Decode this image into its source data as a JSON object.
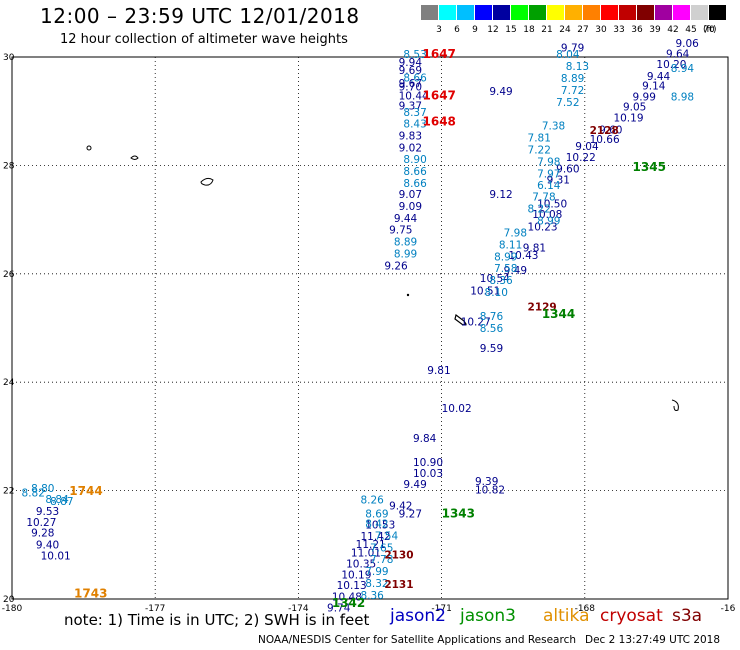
{
  "header": {
    "title": "12:00 – 23:59 UTC 12/01/2018",
    "subtitle": "12 hour collection of altimeter wave heights"
  },
  "legend": {
    "colors": [
      "#808080",
      "#00ffff",
      "#00bfff",
      "#0000ff",
      "#0000a0",
      "#00ff00",
      "#00a000",
      "#ffff00",
      "#ffb000",
      "#ff8000",
      "#ff0000",
      "#c00000",
      "#800000",
      "#a000a0",
      "#ff00ff",
      "#d0d0d0",
      "#000000"
    ],
    "labels": [
      "3",
      "6",
      "9",
      "12",
      "15",
      "18",
      "21",
      "24",
      "27",
      "30",
      "33",
      "36",
      "39",
      "42",
      "45",
      "70"
    ],
    "unit": "(ft)"
  },
  "axes": {
    "x_ticks": [
      "-180",
      "-177",
      "-174",
      "-171",
      "-168",
      "-16"
    ],
    "y_ticks": [
      "30",
      "28",
      "26",
      "24",
      "22",
      "20"
    ]
  },
  "chart_data": {
    "type": "scatter",
    "x_range": [
      -180,
      -165
    ],
    "y_range": [
      20,
      30
    ],
    "grid": true,
    "series": [
      {
        "name": "jason2",
        "color": "#00008b",
        "points": [
          {
            "x": -171.9,
            "y": 29.83,
            "v": "9.94"
          },
          {
            "x": -171.9,
            "y": 29.69,
            "v": "9.69"
          },
          {
            "x": -171.9,
            "y": 29.45,
            "v": "9.67"
          },
          {
            "x": -171.9,
            "y": 29.38,
            "v": "9.70"
          },
          {
            "x": -171.9,
            "y": 29.22,
            "v": "10.44"
          },
          {
            "x": -171.9,
            "y": 29.03,
            "v": "9.37"
          },
          {
            "x": -171.9,
            "y": 28.48,
            "v": "9.83"
          },
          {
            "x": -171.9,
            "y": 28.26,
            "v": "9.02"
          },
          {
            "x": -171.9,
            "y": 27.4,
            "v": "9.07"
          },
          {
            "x": -171.9,
            "y": 27.18,
            "v": "9.09"
          },
          {
            "x": -172.0,
            "y": 26.96,
            "v": "9.44"
          },
          {
            "x": -172.1,
            "y": 26.74,
            "v": "9.75"
          },
          {
            "x": -172.2,
            "y": 26.08,
            "v": "9.26"
          },
          {
            "x": -172.6,
            "y": 21.3,
            "v": "10.53"
          },
          {
            "x": -172.7,
            "y": 21.09,
            "v": "11.42"
          },
          {
            "x": -172.8,
            "y": 20.94,
            "v": "11.21"
          },
          {
            "x": -172.9,
            "y": 20.78,
            "v": "11.01"
          },
          {
            "x": -173.0,
            "y": 20.58,
            "v": "10.35"
          },
          {
            "x": -173.1,
            "y": 20.38,
            "v": "10.19"
          },
          {
            "x": -173.2,
            "y": 20.18,
            "v": "10.13"
          },
          {
            "x": -173.3,
            "y": 19.97,
            "v": "10.48"
          },
          {
            "x": -173.4,
            "y": 19.77,
            "v": "9.74"
          },
          {
            "x": -172.1,
            "y": 21.65,
            "v": "9.42"
          },
          {
            "x": -171.9,
            "y": 21.5,
            "v": "9.27"
          },
          {
            "x": -171.8,
            "y": 22.05,
            "v": "9.49"
          },
          {
            "x": -171.6,
            "y": 22.25,
            "v": "10.03"
          },
          {
            "x": -171.6,
            "y": 22.45,
            "v": "10.90"
          },
          {
            "x": -171.6,
            "y": 22.9,
            "v": "9.84"
          },
          {
            "x": -171.0,
            "y": 23.45,
            "v": "10.02"
          },
          {
            "x": -171.3,
            "y": 24.15,
            "v": "9.81"
          },
          {
            "x": -170.2,
            "y": 24.56,
            "v": "9.59"
          },
          {
            "x": -170.6,
            "y": 25.05,
            "v": "10.27"
          },
          {
            "x": -170.4,
            "y": 25.62,
            "v": "10.51"
          },
          {
            "x": -170.2,
            "y": 25.85,
            "v": "10.54"
          },
          {
            "x": -169.7,
            "y": 26.0,
            "v": "9.49"
          },
          {
            "x": -169.6,
            "y": 26.27,
            "v": "10.43"
          },
          {
            "x": -169.3,
            "y": 26.41,
            "v": "9.81"
          },
          {
            "x": -169.2,
            "y": 26.8,
            "v": "10.23"
          },
          {
            "x": -169.1,
            "y": 27.03,
            "v": "10.08"
          },
          {
            "x": -169.0,
            "y": 27.22,
            "v": "10.50"
          },
          {
            "x": -170.0,
            "y": 27.4,
            "v": "9.12"
          },
          {
            "x": -168.8,
            "y": 27.67,
            "v": "9.31"
          },
          {
            "x": -168.6,
            "y": 27.87,
            "v": "9.60"
          },
          {
            "x": -168.4,
            "y": 28.08,
            "v": "10.22"
          },
          {
            "x": -168.2,
            "y": 28.28,
            "v": "9.04"
          },
          {
            "x": -167.9,
            "y": 28.41,
            "v": "10.66"
          },
          {
            "x": -167.7,
            "y": 28.59,
            "v": "9.60"
          },
          {
            "x": -167.4,
            "y": 28.81,
            "v": "10.19"
          },
          {
            "x": -167.2,
            "y": 29.01,
            "v": "9.05"
          },
          {
            "x": -170.0,
            "y": 29.3,
            "v": "9.49"
          },
          {
            "x": -167.0,
            "y": 29.2,
            "v": "9.99"
          },
          {
            "x": -166.8,
            "y": 29.4,
            "v": "9.14"
          },
          {
            "x": -166.7,
            "y": 29.58,
            "v": "9.44"
          },
          {
            "x": -166.5,
            "y": 29.8,
            "v": "10.20"
          },
          {
            "x": -166.3,
            "y": 29.99,
            "v": "9.64"
          },
          {
            "x": -166.1,
            "y": 30.18,
            "v": "9.06"
          },
          {
            "x": -168.5,
            "y": 30.1,
            "v": "9.79"
          },
          {
            "x": -179.5,
            "y": 21.55,
            "v": "9.53"
          },
          {
            "x": -179.7,
            "y": 21.35,
            "v": "10.27"
          },
          {
            "x": -179.6,
            "y": 21.15,
            "v": "9.28"
          },
          {
            "x": -179.5,
            "y": 20.93,
            "v": "9.40"
          },
          {
            "x": -179.4,
            "y": 20.73,
            "v": "10.01"
          },
          {
            "x": -170.3,
            "y": 22.1,
            "v": "9.39"
          },
          {
            "x": -170.3,
            "y": 21.95,
            "v": "10.82"
          }
        ]
      },
      {
        "name": "jason3",
        "color": "#0080c0",
        "points": [
          {
            "x": -171.8,
            "y": 29.98,
            "v": "8.53"
          },
          {
            "x": -171.8,
            "y": 29.55,
            "v": "8.66"
          },
          {
            "x": -171.8,
            "y": 28.91,
            "v": "8.37"
          },
          {
            "x": -171.8,
            "y": 28.7,
            "v": "8.43"
          },
          {
            "x": -171.8,
            "y": 28.04,
            "v": "8.90"
          },
          {
            "x": -171.8,
            "y": 27.82,
            "v": "8.66"
          },
          {
            "x": -171.8,
            "y": 27.6,
            "v": "8.66"
          },
          {
            "x": -172.0,
            "y": 26.52,
            "v": "8.89"
          },
          {
            "x": -172.0,
            "y": 26.3,
            "v": "8.99"
          },
          {
            "x": -168.6,
            "y": 29.98,
            "v": "8.04"
          },
          {
            "x": -168.4,
            "y": 29.76,
            "v": "8.13"
          },
          {
            "x": -168.5,
            "y": 29.54,
            "v": "8.89"
          },
          {
            "x": -168.5,
            "y": 29.32,
            "v": "7.72"
          },
          {
            "x": -168.6,
            "y": 29.1,
            "v": "7.52"
          },
          {
            "x": -168.9,
            "y": 28.66,
            "v": "7.38"
          },
          {
            "x": -169.2,
            "y": 28.44,
            "v": "7.81"
          },
          {
            "x": -169.2,
            "y": 28.22,
            "v": "7.22"
          },
          {
            "x": -169.0,
            "y": 28.0,
            "v": "7.98"
          },
          {
            "x": -169.0,
            "y": 27.78,
            "v": "7.97"
          },
          {
            "x": -169.0,
            "y": 27.56,
            "v": "6.14"
          },
          {
            "x": -169.1,
            "y": 27.35,
            "v": "7.78"
          },
          {
            "x": -169.2,
            "y": 27.13,
            "v": "8.22"
          },
          {
            "x": -169.0,
            "y": 26.91,
            "v": "8.99"
          },
          {
            "x": -169.7,
            "y": 26.69,
            "v": "7.98"
          },
          {
            "x": -169.8,
            "y": 26.47,
            "v": "8.11"
          },
          {
            "x": -169.9,
            "y": 26.25,
            "v": "8.99"
          },
          {
            "x": -169.9,
            "y": 26.03,
            "v": "7.58"
          },
          {
            "x": -170.0,
            "y": 25.81,
            "v": "8.36"
          },
          {
            "x": -170.1,
            "y": 25.59,
            "v": "8.10"
          },
          {
            "x": -170.2,
            "y": 25.15,
            "v": "8.76"
          },
          {
            "x": -170.2,
            "y": 24.93,
            "v": "8.56"
          },
          {
            "x": -166.2,
            "y": 29.72,
            "v": "8.94"
          },
          {
            "x": -166.2,
            "y": 29.2,
            "v": "8.98"
          },
          {
            "x": -179.8,
            "y": 21.89,
            "v": "8.82"
          },
          {
            "x": -179.6,
            "y": 21.97,
            "v": "8.80"
          },
          {
            "x": -179.3,
            "y": 21.77,
            "v": "8.84"
          },
          {
            "x": -179.2,
            "y": 21.73,
            "v": "8.87"
          },
          {
            "x": -172.6,
            "y": 21.32,
            "v": "8.42"
          },
          {
            "x": -172.4,
            "y": 21.1,
            "v": "7.54"
          },
          {
            "x": -172.5,
            "y": 20.88,
            "v": "7.65"
          },
          {
            "x": -172.5,
            "y": 20.66,
            "v": "7.78"
          },
          {
            "x": -172.6,
            "y": 20.44,
            "v": "7.99"
          },
          {
            "x": -172.6,
            "y": 20.22,
            "v": "8.32"
          },
          {
            "x": -172.7,
            "y": 20.0,
            "v": "8.36"
          },
          {
            "x": -172.6,
            "y": 21.5,
            "v": "8.69"
          },
          {
            "x": -172.7,
            "y": 21.76,
            "v": "8.26"
          }
        ]
      },
      {
        "name": "cryosat",
        "color": "#800000",
        "points": [
          {
            "x": -167.9,
            "y": 28.58,
            "v": "2128"
          },
          {
            "x": -169.2,
            "y": 25.32,
            "v": "2129"
          },
          {
            "x": -172.2,
            "y": 20.75,
            "v": "2130"
          },
          {
            "x": -172.2,
            "y": 20.2,
            "v": "2131"
          }
        ]
      }
    ],
    "time_labels": [
      {
        "text": "1647",
        "color": "#e00000",
        "x": -171.4,
        "y": 29.98
      },
      {
        "text": "1647",
        "color": "#e00000",
        "x": -171.4,
        "y": 29.22
      },
      {
        "text": "1648",
        "color": "#e00000",
        "x": -171.4,
        "y": 28.74
      },
      {
        "text": "1345",
        "color": "#008000",
        "x": -167.0,
        "y": 27.9
      },
      {
        "text": "1344",
        "color": "#008000",
        "x": -168.9,
        "y": 25.18
      },
      {
        "text": "1343",
        "color": "#008000",
        "x": -171.0,
        "y": 21.5
      },
      {
        "text": "1342",
        "color": "#008000",
        "x": -173.3,
        "y": 19.85
      },
      {
        "text": "1744",
        "color": "#e08000",
        "x": -178.8,
        "y": 21.92
      },
      {
        "text": "1743",
        "color": "#e08000",
        "x": -178.7,
        "y": 20.03
      }
    ]
  },
  "note": "note:  1) Time is in UTC;  2) SWH is in feet",
  "satellites": [
    {
      "name": "jason2",
      "color": "#0000c0"
    },
    {
      "name": "jason3",
      "color": "#009000"
    },
    {
      "name": "altika",
      "color": "#e09000"
    },
    {
      "name": "cryosat",
      "color": "#c00000"
    },
    {
      "name": "s3a",
      "color": "#800000"
    }
  ],
  "footer": {
    "left": "NOAA/NESDIS Center for Satellite Applications and Research",
    "right": "Dec  2 13:27:49 UTC 2018"
  }
}
